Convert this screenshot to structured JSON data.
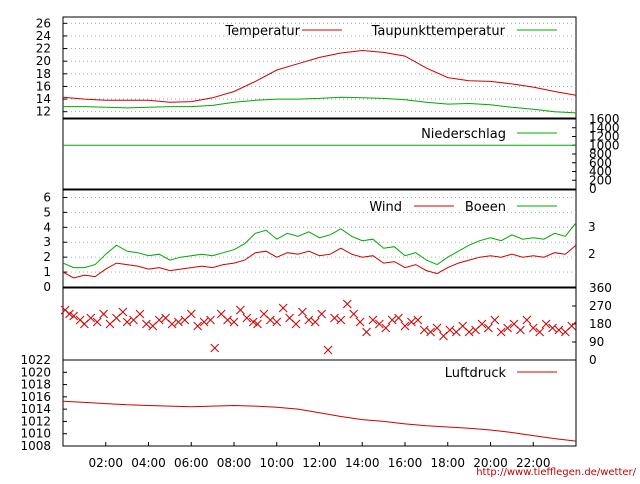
{
  "colors": {
    "red": "#d00000",
    "green": "#00a800",
    "frame": "#000000",
    "grid": "#9a9a9a",
    "url": "#c00000"
  },
  "x_ticks": [
    "02:00",
    "04:00",
    "06:00",
    "08:00",
    "10:00",
    "12:00",
    "14:00",
    "16:00",
    "18:00",
    "20:00",
    "22:00"
  ],
  "url": "http://www.tiefflegen.de/wetter/",
  "chart_data": [
    {
      "type": "line",
      "title": "",
      "x_unit": "hour",
      "xlim": [
        0,
        24
      ],
      "ylim": [
        11,
        27
      ],
      "y_ticks": [
        12,
        14,
        16,
        18,
        20,
        22,
        24,
        26
      ],
      "grid": "horizontal dotted",
      "legend": "top",
      "series": [
        {
          "name": "Temperatur",
          "color": "#d00000",
          "x": [
            0,
            1,
            2,
            3,
            4,
            5,
            6,
            7,
            8,
            9,
            10,
            11,
            12,
            13,
            14,
            15,
            16,
            17,
            18,
            19,
            20,
            21,
            22,
            23,
            24
          ],
          "values": [
            14.3,
            14.0,
            13.8,
            13.8,
            13.8,
            13.5,
            13.6,
            14.2,
            15.2,
            16.8,
            18.6,
            19.6,
            20.6,
            21.3,
            21.7,
            21.4,
            20.8,
            18.9,
            17.4,
            16.9,
            16.8,
            16.4,
            15.9,
            15.2,
            14.6
          ]
        },
        {
          "name": "Taupunkttemperatur",
          "color": "#00a800",
          "x": [
            0,
            1,
            2,
            3,
            4,
            5,
            6,
            7,
            8,
            9,
            10,
            11,
            12,
            13,
            14,
            15,
            16,
            17,
            18,
            19,
            20,
            21,
            22,
            23,
            24
          ],
          "values": [
            12.8,
            12.8,
            12.7,
            12.6,
            12.7,
            12.8,
            12.8,
            13.0,
            13.5,
            13.8,
            14.0,
            14.0,
            14.1,
            14.3,
            14.2,
            14.1,
            13.9,
            13.5,
            13.2,
            13.3,
            13.1,
            12.7,
            12.4,
            12.0,
            11.8
          ]
        }
      ]
    },
    {
      "type": "line",
      "title": "",
      "x_unit": "hour",
      "xlim": [
        0,
        24
      ],
      "ylim": [
        0,
        1600
      ],
      "y_ticks": [
        0,
        200,
        400,
        600,
        800,
        1000,
        1200,
        1400,
        1600
      ],
      "y_axis": "right",
      "legend": "top-right",
      "series": [
        {
          "name": "Niederschlag",
          "color": "#00a800",
          "x": [
            0,
            24
          ],
          "values": [
            1000,
            1000
          ]
        }
      ]
    },
    {
      "type": "line",
      "title": "",
      "x_unit": "hour",
      "xlim": [
        0,
        24
      ],
      "ylim": [
        0,
        6.5
      ],
      "y_ticks": [
        0,
        1,
        2,
        3,
        4,
        5,
        6
      ],
      "y2_ticks": [
        "2",
        "3"
      ],
      "grid": "horizontal dotted",
      "legend": "top",
      "series": [
        {
          "name": "Wind",
          "color": "#d00000",
          "x": [
            0,
            0.5,
            1,
            1.5,
            2,
            2.5,
            3,
            3.5,
            4,
            4.5,
            5,
            5.5,
            6,
            6.5,
            7,
            7.5,
            8,
            8.5,
            9,
            9.5,
            10,
            10.5,
            11,
            11.5,
            12,
            12.5,
            13,
            13.5,
            14,
            14.5,
            15,
            15.5,
            16,
            16.5,
            17,
            17.5,
            18,
            18.5,
            19,
            19.5,
            20,
            20.5,
            21,
            21.5,
            22,
            22.5,
            23,
            23.5,
            24
          ],
          "values": [
            1.0,
            0.6,
            0.8,
            0.7,
            1.2,
            1.6,
            1.5,
            1.4,
            1.2,
            1.3,
            1.1,
            1.2,
            1.3,
            1.4,
            1.3,
            1.5,
            1.6,
            1.8,
            2.3,
            2.4,
            2.0,
            2.3,
            2.2,
            2.4,
            2.1,
            2.2,
            2.6,
            2.2,
            2.0,
            2.1,
            1.6,
            1.7,
            1.3,
            1.5,
            1.1,
            0.9,
            1.3,
            1.6,
            1.8,
            2.0,
            2.1,
            2.0,
            2.2,
            2.0,
            2.1,
            2.0,
            2.3,
            2.2,
            2.8
          ]
        },
        {
          "name": "Boeen",
          "color": "#00a800",
          "x": [
            0,
            0.5,
            1,
            1.5,
            2,
            2.5,
            3,
            3.5,
            4,
            4.5,
            5,
            5.5,
            6,
            6.5,
            7,
            7.5,
            8,
            8.5,
            9,
            9.5,
            10,
            10.5,
            11,
            11.5,
            12,
            12.5,
            13,
            13.5,
            14,
            14.5,
            15,
            15.5,
            16,
            16.5,
            17,
            17.5,
            18,
            18.5,
            19,
            19.5,
            20,
            20.5,
            21,
            21.5,
            22,
            22.5,
            23,
            23.5,
            24
          ],
          "values": [
            1.6,
            1.3,
            1.3,
            1.5,
            2.2,
            2.8,
            2.4,
            2.3,
            2.1,
            2.2,
            1.8,
            2.0,
            2.1,
            2.2,
            2.1,
            2.3,
            2.5,
            2.9,
            3.6,
            3.8,
            3.2,
            3.6,
            3.4,
            3.7,
            3.3,
            3.5,
            3.9,
            3.4,
            3.1,
            3.2,
            2.6,
            2.7,
            2.1,
            2.3,
            1.8,
            1.5,
            2.0,
            2.4,
            2.8,
            3.1,
            3.3,
            3.1,
            3.5,
            3.2,
            3.3,
            3.2,
            3.6,
            3.4,
            4.3
          ]
        }
      ]
    },
    {
      "type": "scatter",
      "title": "",
      "x_unit": "hour",
      "xlim": [
        0,
        24
      ],
      "ylim": [
        0,
        360
      ],
      "y_ticks": [
        0,
        90,
        180,
        270,
        360
      ],
      "y_axis": "right",
      "marker": "x",
      "series": [
        {
          "name": "",
          "color": "#d00000",
          "x": [
            0.1,
            0.3,
            0.5,
            0.8,
            1.0,
            1.3,
            1.6,
            1.9,
            2.2,
            2.5,
            2.8,
            3.0,
            3.3,
            3.6,
            3.9,
            4.2,
            4.5,
            4.8,
            5.1,
            5.4,
            5.7,
            6.0,
            6.3,
            6.6,
            6.9,
            7.1,
            7.4,
            7.7,
            8.0,
            8.3,
            8.6,
            8.9,
            9.1,
            9.4,
            9.7,
            10.0,
            10.3,
            10.6,
            10.9,
            11.2,
            11.5,
            11.8,
            12.1,
            12.4,
            12.7,
            13.0,
            13.3,
            13.6,
            13.9,
            14.2,
            14.5,
            14.8,
            15.1,
            15.4,
            15.7,
            16.0,
            16.3,
            16.6,
            16.9,
            17.2,
            17.5,
            17.8,
            18.1,
            18.4,
            18.7,
            19.0,
            19.3,
            19.6,
            19.9,
            20.2,
            20.5,
            20.8,
            21.1,
            21.4,
            21.7,
            22.0,
            22.3,
            22.6,
            22.9,
            23.2,
            23.5,
            23.8
          ],
          "values": [
            250,
            230,
            220,
            200,
            180,
            210,
            190,
            230,
            180,
            210,
            240,
            190,
            200,
            230,
            180,
            170,
            200,
            210,
            180,
            190,
            200,
            230,
            170,
            190,
            200,
            60,
            230,
            200,
            190,
            250,
            210,
            190,
            180,
            230,
            200,
            190,
            260,
            210,
            180,
            240,
            200,
            190,
            230,
            50,
            210,
            200,
            280,
            230,
            190,
            140,
            200,
            180,
            160,
            200,
            210,
            170,
            190,
            200,
            150,
            140,
            160,
            120,
            150,
            140,
            170,
            140,
            150,
            180,
            160,
            200,
            140,
            160,
            180,
            150,
            200,
            160,
            140,
            180,
            160,
            150,
            140,
            170
          ]
        }
      ]
    },
    {
      "type": "line",
      "title": "",
      "x_unit": "hour",
      "xlim": [
        0,
        24
      ],
      "ylim": [
        1008,
        1022
      ],
      "y_ticks": [
        1008,
        1010,
        1012,
        1014,
        1016,
        1018,
        1020,
        1022
      ],
      "legend": "top-right",
      "series": [
        {
          "name": "Luftdruck",
          "color": "#d00000",
          "x": [
            0,
            1,
            2,
            3,
            4,
            5,
            6,
            7,
            8,
            9,
            10,
            11,
            12,
            13,
            14,
            15,
            16,
            17,
            18,
            19,
            20,
            21,
            22,
            23,
            24
          ],
          "values": [
            1015.3,
            1015.1,
            1014.9,
            1014.7,
            1014.6,
            1014.5,
            1014.4,
            1014.5,
            1014.6,
            1014.5,
            1014.3,
            1014.0,
            1013.4,
            1012.8,
            1012.3,
            1012.0,
            1011.6,
            1011.3,
            1011.1,
            1010.9,
            1010.6,
            1010.2,
            1009.7,
            1009.2,
            1008.8
          ]
        }
      ]
    }
  ]
}
